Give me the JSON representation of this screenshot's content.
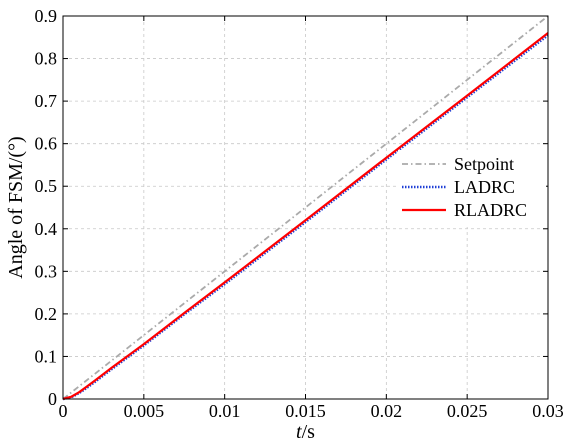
{
  "chart_data": {
    "type": "line",
    "title": "",
    "xlabel_italic": "t",
    "xlabel_rest": "/s",
    "ylabel": "Angle of  FSM/(°)",
    "xlim": [
      0,
      0.03
    ],
    "ylim": [
      0,
      0.9
    ],
    "xticks": [
      0,
      0.005,
      0.01,
      0.015,
      0.02,
      0.025,
      0.03
    ],
    "xtick_labels": [
      "0",
      "0.005",
      "0.01",
      "0.015",
      "0.02",
      "0.025",
      "0.03"
    ],
    "yticks": [
      0,
      0.1,
      0.2,
      0.3,
      0.4,
      0.5,
      0.6,
      0.7,
      0.8,
      0.9
    ],
    "ytick_labels": [
      "0",
      "0.1",
      "0.2",
      "0.3",
      "0.4",
      "0.5",
      "0.6",
      "0.7",
      "0.8",
      "0.9"
    ],
    "grid": true,
    "legend_position": "right-middle",
    "series": [
      {
        "name": "Setpoint",
        "color": "#aaaaaa",
        "style": "dashdot",
        "x": [
          0,
          0.03
        ],
        "y": [
          0,
          0.9
        ]
      },
      {
        "name": "LADRC",
        "color": "#1f3fd6",
        "style": "dotted",
        "x": [
          0,
          0.0005,
          0.001,
          0.0015,
          0.002,
          0.003,
          0.004,
          0.005,
          0.0075,
          0.01,
          0.015,
          0.02,
          0.025,
          0.03
        ],
        "y": [
          0,
          0.004,
          0.014,
          0.027,
          0.041,
          0.07,
          0.098,
          0.126,
          0.199,
          0.27,
          0.416,
          0.563,
          0.709,
          0.855
        ]
      },
      {
        "name": "RLADRC",
        "color": "#ff0000",
        "style": "solid",
        "x": [
          0,
          0.0005,
          0.001,
          0.0015,
          0.002,
          0.003,
          0.004,
          0.005,
          0.0075,
          0.01,
          0.015,
          0.02,
          0.025,
          0.03
        ],
        "y": [
          0,
          0.005,
          0.016,
          0.03,
          0.044,
          0.073,
          0.101,
          0.129,
          0.202,
          0.274,
          0.42,
          0.567,
          0.713,
          0.86
        ]
      }
    ]
  }
}
